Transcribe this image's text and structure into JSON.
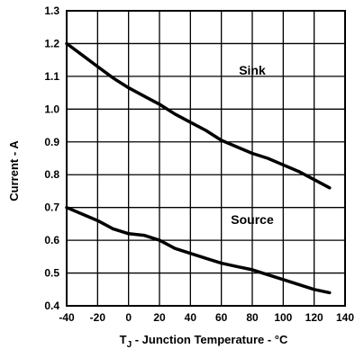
{
  "chart_data": {
    "type": "line",
    "xlabel_subscript_base": "T",
    "xlabel_subscript": "J",
    "xlabel": " - Junction Temperature - °C",
    "ylabel": "Current - A",
    "xlim": [
      -40,
      140
    ],
    "ylim": [
      0.4,
      1.3
    ],
    "x_ticks": [
      "-40",
      "-20",
      "0",
      "20",
      "40",
      "60",
      "80",
      "100",
      "120",
      "140"
    ],
    "y_ticks": [
      "0.4",
      "0.5",
      "0.6",
      "0.7",
      "0.8",
      "0.9",
      "1.0",
      "1.1",
      "1.2",
      "1.3"
    ],
    "grid": true,
    "line_color": "#000000",
    "series": [
      {
        "name": "Sink",
        "x": [
          -40,
          -30,
          -20,
          -10,
          0,
          10,
          20,
          30,
          40,
          50,
          60,
          70,
          80,
          90,
          100,
          110,
          120,
          130
        ],
        "y": [
          1.2,
          1.165,
          1.13,
          1.095,
          1.065,
          1.04,
          1.015,
          0.985,
          0.96,
          0.935,
          0.905,
          0.885,
          0.865,
          0.85,
          0.83,
          0.81,
          0.785,
          0.76
        ]
      },
      {
        "name": "Source",
        "x": [
          -40,
          -30,
          -20,
          -10,
          0,
          10,
          20,
          30,
          40,
          50,
          60,
          70,
          80,
          90,
          100,
          110,
          120,
          130
        ],
        "y": [
          0.7,
          0.68,
          0.66,
          0.635,
          0.62,
          0.615,
          0.6,
          0.575,
          0.56,
          0.545,
          0.53,
          0.52,
          0.51,
          0.495,
          0.48,
          0.465,
          0.45,
          0.44
        ]
      }
    ]
  }
}
